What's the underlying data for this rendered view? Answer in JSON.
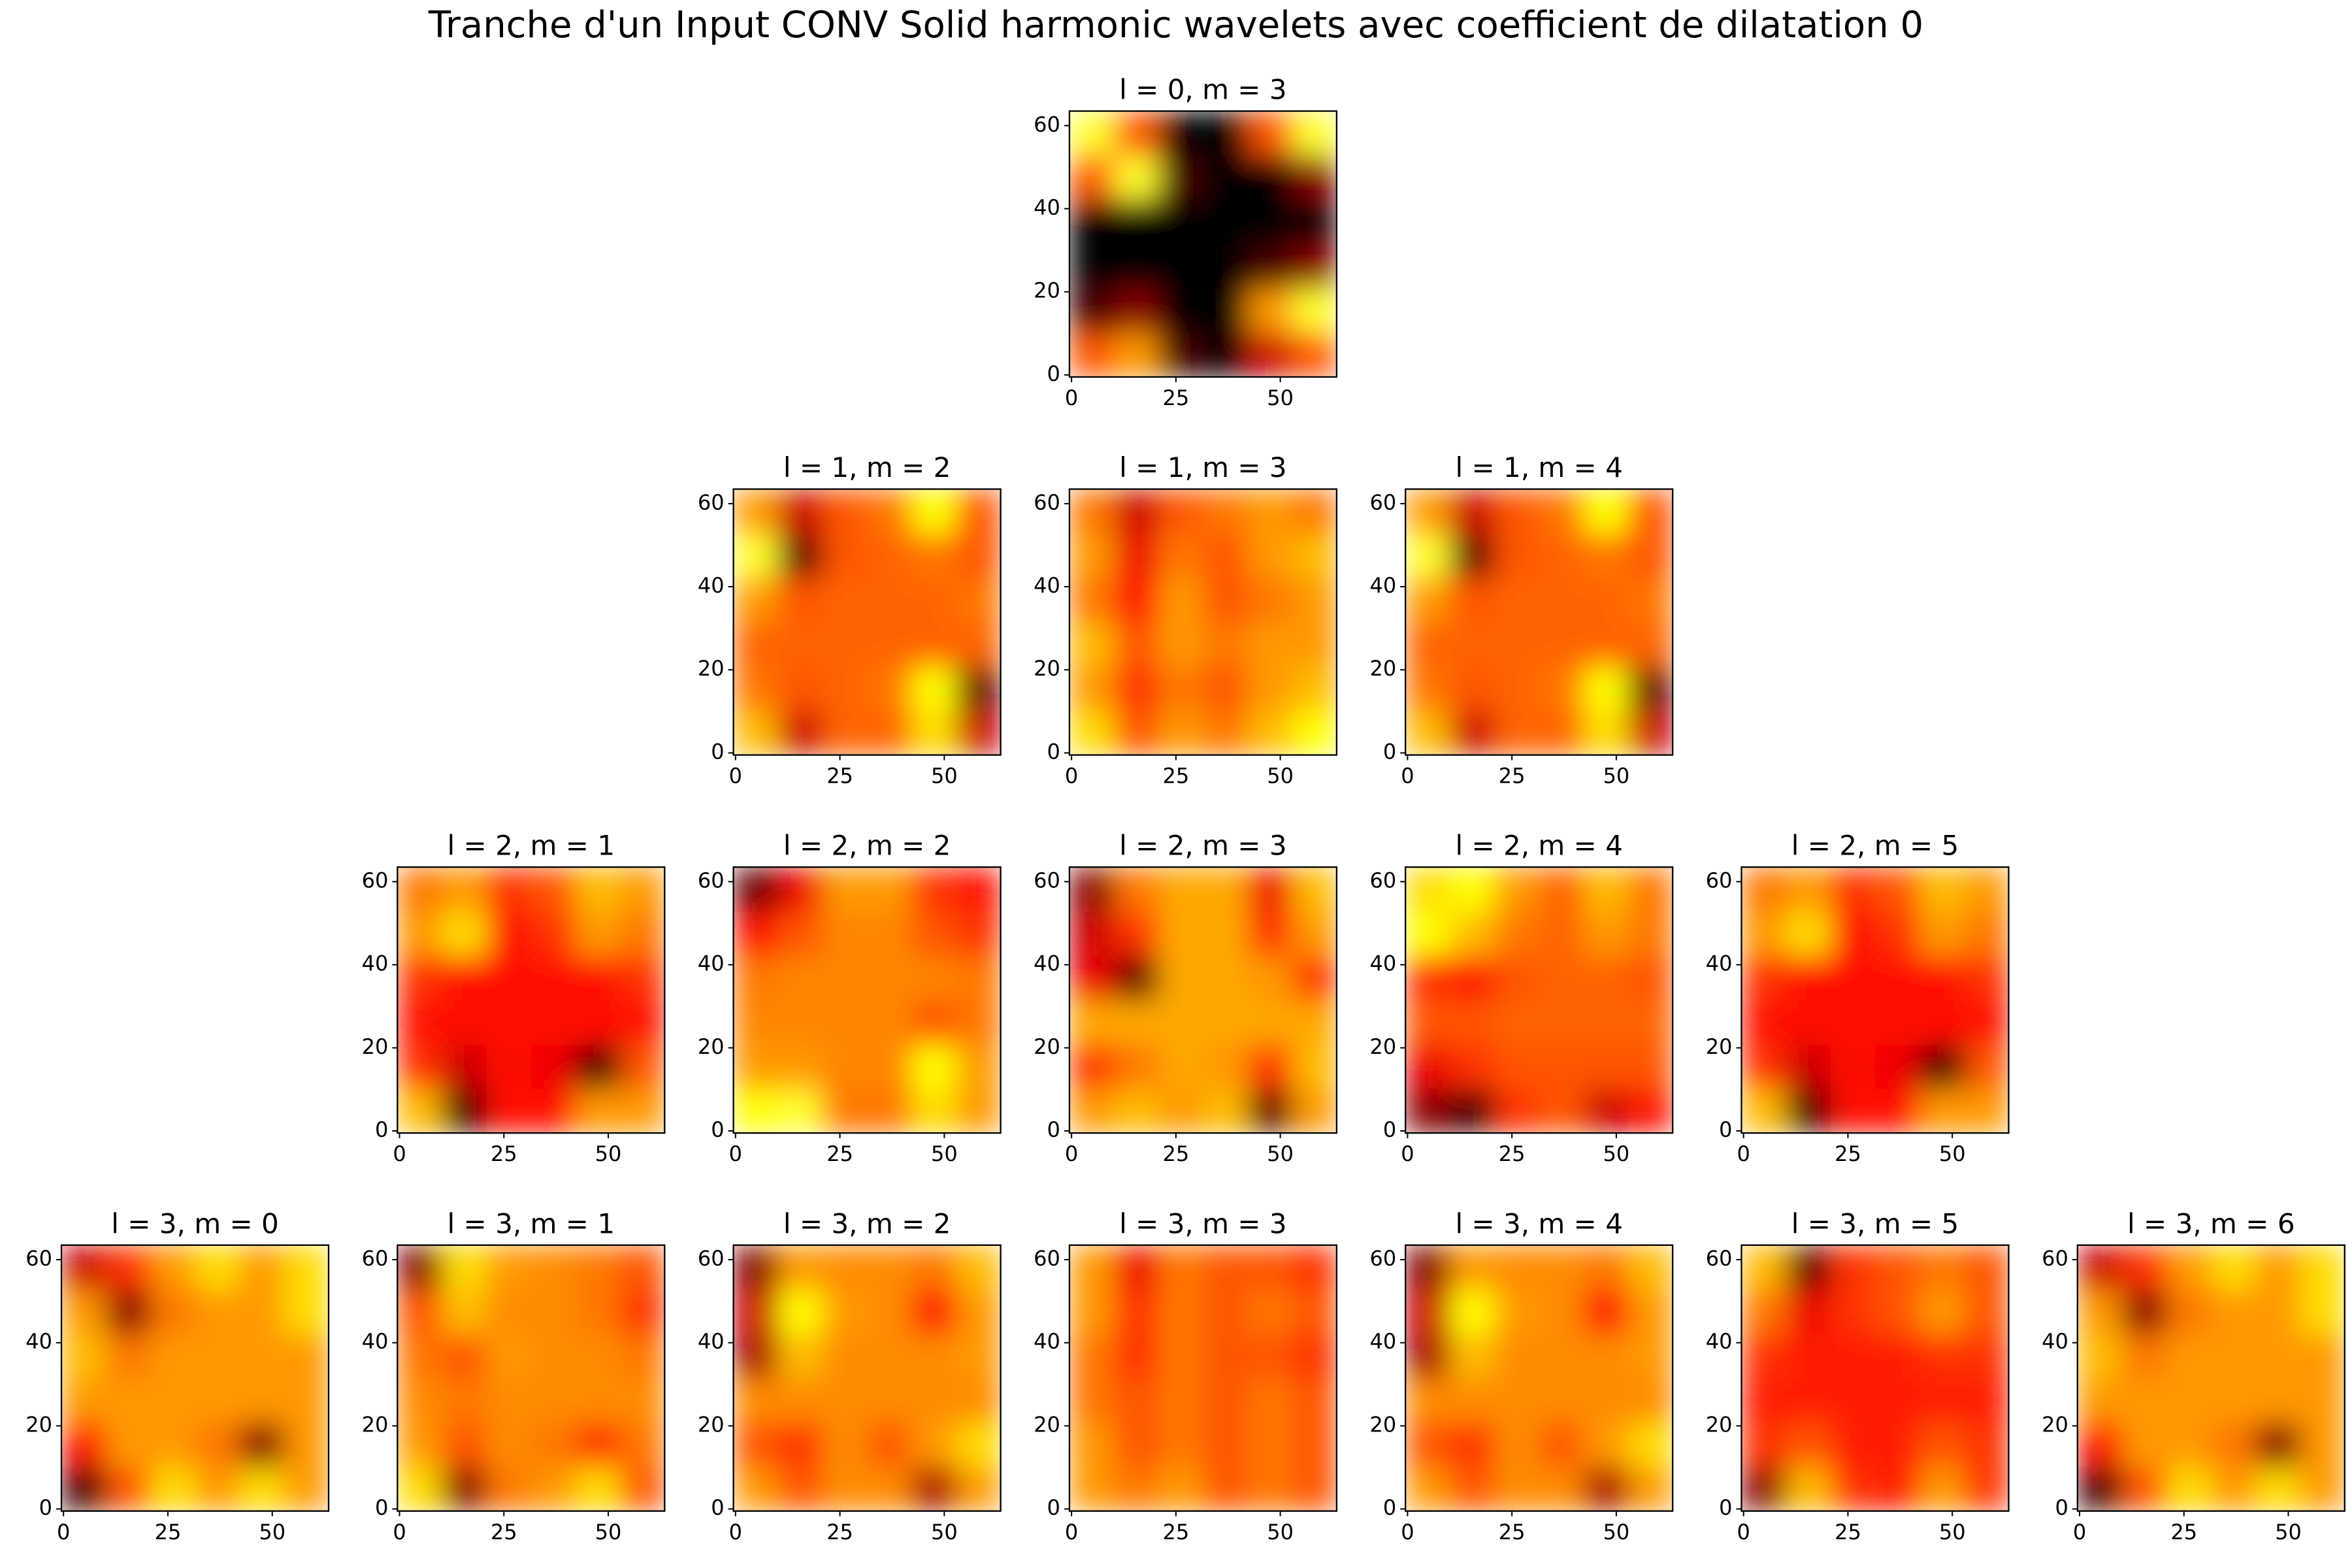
{
  "title": "Tranche d'un Input CONV Solid harmonic wavelets avec coefficient de dilatation 0",
  "chart_data": [
    {
      "type": "heatmap",
      "title": "l = 0, m = 3",
      "colormap": "hot",
      "xlim": [
        -0.5,
        63.5
      ],
      "ylim": [
        -0.5,
        63.5
      ],
      "xticks": [
        0,
        25,
        50
      ],
      "yticks": [
        0,
        20,
        40,
        60
      ],
      "z": [
        [
          0.5,
          0.6,
          0.1,
          0,
          0.3,
          0.5
        ],
        [
          0.1,
          0.2,
          0,
          0,
          0.6,
          0.8
        ],
        [
          0,
          0,
          0,
          0,
          0.1,
          0.2
        ],
        [
          0,
          0,
          0,
          0,
          0,
          0
        ],
        [
          0.5,
          0.8,
          0.1,
          0,
          0,
          0.2
        ],
        [
          0.8,
          0.5,
          0,
          0,
          0.5,
          0.8
        ]
      ]
    },
    {
      "type": "heatmap",
      "title": "l = 1, m = 2",
      "colormap": "hot",
      "xlim": [
        -0.5,
        63.5
      ],
      "ylim": [
        -0.5,
        63.5
      ],
      "xticks": [
        0,
        25,
        50
      ],
      "yticks": [
        0,
        20,
        40,
        60
      ],
      "z": [
        [
          0.65,
          0.3,
          0.52,
          0.52,
          0.7,
          0.3
        ],
        [
          0.55,
          0.5,
          0.52,
          0.55,
          0.75,
          0.15
        ],
        [
          0.52,
          0.52,
          0.52,
          0.52,
          0.52,
          0.52
        ],
        [
          0.6,
          0.5,
          0.52,
          0.52,
          0.52,
          0.55
        ],
        [
          0.8,
          0.15,
          0.5,
          0.52,
          0.55,
          0.5
        ],
        [
          0.6,
          0.3,
          0.5,
          0.55,
          0.75,
          0.5
        ]
      ]
    },
    {
      "type": "heatmap",
      "title": "l = 1, m = 3",
      "colormap": "hot",
      "xlim": [
        -0.5,
        63.5
      ],
      "ylim": [
        -0.5,
        63.5
      ],
      "xticks": [
        0,
        25,
        50
      ],
      "yticks": [
        0,
        20,
        40,
        60
      ],
      "z": [
        [
          0.7,
          0.5,
          0.6,
          0.55,
          0.65,
          0.75
        ],
        [
          0.6,
          0.45,
          0.55,
          0.5,
          0.6,
          0.65
        ],
        [
          0.65,
          0.5,
          0.6,
          0.55,
          0.6,
          0.6
        ],
        [
          0.55,
          0.4,
          0.6,
          0.5,
          0.55,
          0.6
        ],
        [
          0.6,
          0.35,
          0.55,
          0.5,
          0.6,
          0.65
        ],
        [
          0.55,
          0.3,
          0.5,
          0.55,
          0.6,
          0.55
        ]
      ]
    },
    {
      "type": "heatmap",
      "title": "l = 1, m = 4",
      "colormap": "hot",
      "xlim": [
        -0.5,
        63.5
      ],
      "ylim": [
        -0.5,
        63.5
      ],
      "xticks": [
        0,
        25,
        50
      ],
      "yticks": [
        0,
        20,
        40,
        60
      ],
      "z": [
        [
          0.65,
          0.3,
          0.52,
          0.52,
          0.7,
          0.3
        ],
        [
          0.55,
          0.5,
          0.52,
          0.55,
          0.75,
          0.15
        ],
        [
          0.52,
          0.52,
          0.52,
          0.52,
          0.52,
          0.52
        ],
        [
          0.6,
          0.5,
          0.52,
          0.52,
          0.52,
          0.55
        ],
        [
          0.8,
          0.15,
          0.5,
          0.52,
          0.55,
          0.5
        ],
        [
          0.6,
          0.3,
          0.5,
          0.55,
          0.75,
          0.5
        ]
      ]
    },
    {
      "type": "heatmap",
      "title": "l = 2, m = 1",
      "colormap": "hot",
      "xlim": [
        -0.5,
        63.5
      ],
      "ylim": [
        -0.5,
        63.5
      ],
      "xticks": [
        0,
        25,
        50
      ],
      "yticks": [
        0,
        20,
        40,
        60
      ],
      "z": [
        [
          0.65,
          0.1,
          0.4,
          0.4,
          0.6,
          0.6
        ],
        [
          0.45,
          0.3,
          0.4,
          0.35,
          0.1,
          0.5
        ],
        [
          0.4,
          0.4,
          0.4,
          0.4,
          0.4,
          0.4
        ],
        [
          0.45,
          0.4,
          0.4,
          0.4,
          0.4,
          0.45
        ],
        [
          0.6,
          0.7,
          0.4,
          0.45,
          0.6,
          0.55
        ],
        [
          0.55,
          0.6,
          0.45,
          0.5,
          0.65,
          0.6
        ]
      ]
    },
    {
      "type": "heatmap",
      "title": "l = 2, m = 2",
      "colormap": "hot",
      "xlim": [
        -0.5,
        63.5
      ],
      "ylim": [
        -0.5,
        63.5
      ],
      "xticks": [
        0,
        25,
        50
      ],
      "yticks": [
        0,
        20,
        40,
        60
      ],
      "z": [
        [
          0.75,
          0.8,
          0.55,
          0.55,
          0.7,
          0.6
        ],
        [
          0.6,
          0.6,
          0.57,
          0.57,
          0.75,
          0.6
        ],
        [
          0.57,
          0.57,
          0.57,
          0.57,
          0.5,
          0.55
        ],
        [
          0.55,
          0.57,
          0.57,
          0.57,
          0.57,
          0.55
        ],
        [
          0.4,
          0.5,
          0.57,
          0.57,
          0.5,
          0.45
        ],
        [
          0.15,
          0.35,
          0.6,
          0.6,
          0.45,
          0.4
        ]
      ]
    },
    {
      "type": "heatmap",
      "title": "l = 2, m = 3",
      "colormap": "hot",
      "xlim": [
        -0.5,
        63.5
      ],
      "ylim": [
        -0.5,
        63.5
      ],
      "xticks": [
        0,
        25,
        50
      ],
      "yticks": [
        0,
        20,
        40,
        60
      ],
      "z": [
        [
          0.6,
          0.65,
          0.6,
          0.65,
          0.15,
          0.6
        ],
        [
          0.45,
          0.55,
          0.62,
          0.6,
          0.45,
          0.65
        ],
        [
          0.62,
          0.62,
          0.62,
          0.62,
          0.62,
          0.62
        ],
        [
          0.35,
          0.15,
          0.62,
          0.62,
          0.6,
          0.45
        ],
        [
          0.3,
          0.45,
          0.62,
          0.62,
          0.45,
          0.6
        ],
        [
          0.2,
          0.55,
          0.62,
          0.62,
          0.35,
          0.65
        ]
      ]
    },
    {
      "type": "heatmap",
      "title": "l = 2, m = 4",
      "colormap": "hot",
      "xlim": [
        -0.5,
        63.5
      ],
      "ylim": [
        -0.5,
        63.5
      ],
      "xticks": [
        0,
        25,
        50
      ],
      "yticks": [
        0,
        20,
        40,
        60
      ],
      "z": [
        [
          0.2,
          0.1,
          0.45,
          0.5,
          0.3,
          0.4
        ],
        [
          0.35,
          0.45,
          0.5,
          0.5,
          0.5,
          0.5
        ],
        [
          0.5,
          0.5,
          0.52,
          0.52,
          0.52,
          0.52
        ],
        [
          0.45,
          0.4,
          0.5,
          0.52,
          0.52,
          0.5
        ],
        [
          0.75,
          0.65,
          0.55,
          0.52,
          0.6,
          0.55
        ],
        [
          0.7,
          0.75,
          0.6,
          0.52,
          0.65,
          0.55
        ]
      ]
    },
    {
      "type": "heatmap",
      "title": "l = 2, m = 5",
      "colormap": "hot",
      "xlim": [
        -0.5,
        63.5
      ],
      "ylim": [
        -0.5,
        63.5
      ],
      "xticks": [
        0,
        25,
        50
      ],
      "yticks": [
        0,
        20,
        40,
        60
      ],
      "z": [
        [
          0.65,
          0.1,
          0.4,
          0.4,
          0.6,
          0.6
        ],
        [
          0.45,
          0.3,
          0.4,
          0.35,
          0.1,
          0.5
        ],
        [
          0.4,
          0.4,
          0.4,
          0.4,
          0.4,
          0.4
        ],
        [
          0.45,
          0.4,
          0.4,
          0.4,
          0.4,
          0.45
        ],
        [
          0.6,
          0.7,
          0.4,
          0.45,
          0.6,
          0.55
        ],
        [
          0.55,
          0.6,
          0.45,
          0.5,
          0.65,
          0.6
        ]
      ]
    },
    {
      "type": "heatmap",
      "title": "l = 3, m = 0",
      "colormap": "hot",
      "xlim": [
        -0.5,
        63.5
      ],
      "ylim": [
        -0.5,
        63.5
      ],
      "xticks": [
        0,
        25,
        50
      ],
      "yticks": [
        0,
        20,
        40,
        60
      ],
      "z": [
        [
          0.1,
          0.5,
          0.7,
          0.6,
          0.7,
          0.6
        ],
        [
          0.4,
          0.6,
          0.6,
          0.55,
          0.2,
          0.6
        ],
        [
          0.6,
          0.6,
          0.6,
          0.6,
          0.6,
          0.6
        ],
        [
          0.65,
          0.55,
          0.6,
          0.6,
          0.6,
          0.6
        ],
        [
          0.6,
          0.2,
          0.55,
          0.6,
          0.6,
          0.7
        ],
        [
          0.3,
          0.45,
          0.6,
          0.7,
          0.6,
          0.7
        ]
      ]
    },
    {
      "type": "heatmap",
      "title": "l = 3, m = 1",
      "colormap": "hot",
      "xlim": [
        -0.5,
        63.5
      ],
      "ylim": [
        -0.5,
        63.5
      ],
      "xticks": [
        0,
        25,
        50
      ],
      "yticks": [
        0,
        20,
        40,
        60
      ],
      "z": [
        [
          0.7,
          0.2,
          0.55,
          0.6,
          0.7,
          0.5
        ],
        [
          0.6,
          0.5,
          0.58,
          0.55,
          0.45,
          0.55
        ],
        [
          0.58,
          0.55,
          0.58,
          0.58,
          0.58,
          0.58
        ],
        [
          0.55,
          0.5,
          0.6,
          0.58,
          0.58,
          0.55
        ],
        [
          0.5,
          0.65,
          0.58,
          0.58,
          0.55,
          0.45
        ],
        [
          0.2,
          0.7,
          0.6,
          0.58,
          0.55,
          0.5
        ]
      ]
    },
    {
      "type": "heatmap",
      "title": "l = 3, m = 2",
      "colormap": "hot",
      "xlim": [
        -0.5,
        63.5
      ],
      "ylim": [
        -0.5,
        63.5
      ],
      "xticks": [
        0,
        25,
        50
      ],
      "yticks": [
        0,
        20,
        40,
        60
      ],
      "z": [
        [
          0.6,
          0.5,
          0.58,
          0.58,
          0.25,
          0.6
        ],
        [
          0.5,
          0.45,
          0.58,
          0.5,
          0.6,
          0.7
        ],
        [
          0.58,
          0.58,
          0.58,
          0.58,
          0.58,
          0.58
        ],
        [
          0.25,
          0.65,
          0.58,
          0.58,
          0.58,
          0.6
        ],
        [
          0.3,
          0.75,
          0.6,
          0.58,
          0.4,
          0.6
        ],
        [
          0.2,
          0.6,
          0.58,
          0.58,
          0.55,
          0.65
        ]
      ]
    },
    {
      "type": "heatmap",
      "title": "l = 3, m = 3",
      "colormap": "hot",
      "xlim": [
        -0.5,
        63.5
      ],
      "ylim": [
        -0.5,
        63.5
      ],
      "xticks": [
        0,
        25,
        50
      ],
      "yticks": [
        0,
        20,
        40,
        60
      ],
      "z": [
        [
          0.6,
          0.55,
          0.6,
          0.5,
          0.55,
          0.5
        ],
        [
          0.6,
          0.5,
          0.55,
          0.5,
          0.55,
          0.5
        ],
        [
          0.55,
          0.5,
          0.55,
          0.5,
          0.55,
          0.5
        ],
        [
          0.55,
          0.45,
          0.55,
          0.5,
          0.5,
          0.45
        ],
        [
          0.6,
          0.45,
          0.55,
          0.5,
          0.55,
          0.5
        ],
        [
          0.6,
          0.35,
          0.55,
          0.5,
          0.5,
          0.45
        ]
      ]
    },
    {
      "type": "heatmap",
      "title": "l = 3, m = 4",
      "colormap": "hot",
      "xlim": [
        -0.5,
        63.5
      ],
      "ylim": [
        -0.5,
        63.5
      ],
      "xticks": [
        0,
        25,
        50
      ],
      "yticks": [
        0,
        20,
        40,
        60
      ],
      "z": [
        [
          0.6,
          0.5,
          0.58,
          0.58,
          0.25,
          0.6
        ],
        [
          0.5,
          0.45,
          0.58,
          0.5,
          0.6,
          0.7
        ],
        [
          0.58,
          0.58,
          0.58,
          0.58,
          0.58,
          0.58
        ],
        [
          0.25,
          0.65,
          0.58,
          0.58,
          0.58,
          0.6
        ],
        [
          0.3,
          0.75,
          0.6,
          0.58,
          0.4,
          0.6
        ],
        [
          0.2,
          0.6,
          0.58,
          0.58,
          0.55,
          0.65
        ]
      ]
    },
    {
      "type": "heatmap",
      "title": "l = 3, m = 5",
      "colormap": "hot",
      "xlim": [
        -0.5,
        63.5
      ],
      "ylim": [
        -0.5,
        63.5
      ],
      "xticks": [
        0,
        25,
        50
      ],
      "yticks": [
        0,
        20,
        40,
        60
      ],
      "z": [
        [
          0.2,
          0.65,
          0.45,
          0.42,
          0.6,
          0.45
        ],
        [
          0.45,
          0.5,
          0.42,
          0.42,
          0.5,
          0.45
        ],
        [
          0.42,
          0.42,
          0.42,
          0.42,
          0.42,
          0.42
        ],
        [
          0.45,
          0.42,
          0.42,
          0.42,
          0.45,
          0.45
        ],
        [
          0.55,
          0.35,
          0.45,
          0.5,
          0.6,
          0.5
        ],
        [
          0.65,
          0.15,
          0.45,
          0.5,
          0.55,
          0.5
        ]
      ]
    },
    {
      "type": "heatmap",
      "title": "l = 3, m = 6",
      "colormap": "hot",
      "xlim": [
        -0.5,
        63.5
      ],
      "ylim": [
        -0.5,
        63.5
      ],
      "xticks": [
        0,
        25,
        50
      ],
      "yticks": [
        0,
        20,
        40,
        60
      ],
      "z": [
        [
          0.1,
          0.5,
          0.7,
          0.6,
          0.7,
          0.6
        ],
        [
          0.4,
          0.6,
          0.6,
          0.55,
          0.2,
          0.6
        ],
        [
          0.6,
          0.6,
          0.6,
          0.6,
          0.6,
          0.6
        ],
        [
          0.65,
          0.55,
          0.6,
          0.6,
          0.6,
          0.6
        ],
        [
          0.6,
          0.2,
          0.55,
          0.6,
          0.6,
          0.7
        ],
        [
          0.3,
          0.45,
          0.6,
          0.7,
          0.6,
          0.7
        ]
      ]
    }
  ]
}
